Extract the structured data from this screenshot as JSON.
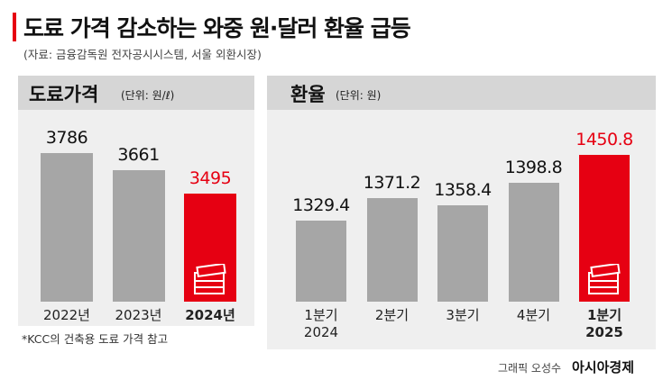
{
  "title": "도료 가격 감소하는 와중 원·달러 환율 급등",
  "subtitle": "(자료: 금융감독원 전자공시시스템, 서울 외환시장)",
  "credit": {
    "byline": "그래픽 오성수",
    "brand": "아시아경제"
  },
  "chart_data": [
    {
      "type": "bar",
      "title": "도료가격",
      "unit": "(단위: 원/ℓ)",
      "categories": [
        "2022년",
        "2023년",
        "2024년"
      ],
      "values": [
        3786,
        3661,
        3495
      ],
      "colors": [
        "#a6a6a6",
        "#a6a6a6",
        "#e60012"
      ],
      "note": "*KCC의 건축용 도료 가격 참고"
    },
    {
      "type": "bar",
      "title": "환율",
      "unit": "(단위: 원)",
      "categories": [
        "1분기\n2024",
        "2분기",
        "3분기",
        "4분기",
        "1분기\n2025"
      ],
      "values": [
        1329.4,
        1371.2,
        1358.4,
        1398.8,
        1450.8
      ],
      "colors": [
        "#a6a6a6",
        "#a6a6a6",
        "#a6a6a6",
        "#a6a6a6",
        "#e60012"
      ]
    }
  ]
}
